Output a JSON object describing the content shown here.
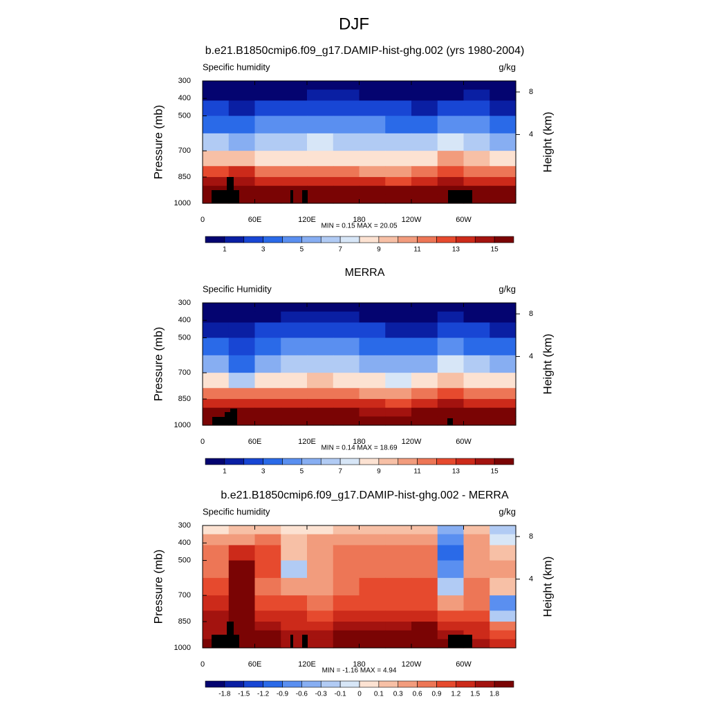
{
  "title": "DJF",
  "chart_data": [
    {
      "type": "contour",
      "title": "b.e21.B1850cmip6.f09_g17.DAMIP-hist-ghg.002 (yrs 1980-2004)",
      "left_string": "Specific humidity",
      "right_string": "g/kg",
      "ylabel": "Pressure (mb)",
      "y2label": "Height (km)",
      "annotation": "MIN =   0.15  MAX =  20.05",
      "x": [
        15,
        45,
        75,
        105,
        135,
        165,
        195,
        225,
        255,
        285,
        315,
        345
      ],
      "y": [
        325,
        375,
        450,
        550,
        650,
        750,
        825,
        875,
        925,
        975
      ],
      "z": [
        [
          0.3,
          0.3,
          0.3,
          0.4,
          0.4,
          0.4,
          0.3,
          0.3,
          0.3,
          0.3,
          0.4,
          0.3
        ],
        [
          0.8,
          0.7,
          0.8,
          0.9,
          1.0,
          1.0,
          0.9,
          0.8,
          0.7,
          0.9,
          1.0,
          0.7
        ],
        [
          2.0,
          1.8,
          2.2,
          2.6,
          2.8,
          2.6,
          2.4,
          2.0,
          1.8,
          2.4,
          2.4,
          1.8
        ],
        [
          3.6,
          3.4,
          4.2,
          4.6,
          4.8,
          4.5,
          4.2,
          3.8,
          3.6,
          4.4,
          4.2,
          3.4
        ],
        [
          6.0,
          5.5,
          6.5,
          6.8,
          7.0,
          6.8,
          6.5,
          6.0,
          6.2,
          7.5,
          6.5,
          5.5
        ],
        [
          9.5,
          9.0,
          8.5,
          8.8,
          8.8,
          8.5,
          8.2,
          8.0,
          8.5,
          10.0,
          9.0,
          8.8
        ],
        [
          12,
          13,
          11,
          11,
          11,
          11,
          10.5,
          10.5,
          11,
          12,
          11.5,
          11.5
        ],
        [
          14,
          14,
          13,
          13.5,
          13.5,
          13,
          13,
          12.5,
          13,
          14,
          13.5,
          13.5
        ],
        [
          16,
          16,
          15.5,
          15.5,
          15.5,
          15.5,
          15,
          15,
          15.5,
          16,
          15.5,
          15.5
        ],
        [
          17.5,
          17,
          17,
          17.5,
          17.5,
          17,
          17,
          16.5,
          17,
          17.5,
          17,
          17
        ]
      ],
      "xlim": [
        0,
        360
      ],
      "ylim": [
        1000,
        300
      ],
      "xticks": [
        0,
        {
          "value": 60,
          "label": "60E"
        },
        {
          "value": 120,
          "label": "120E"
        },
        180,
        {
          "value": 240,
          "label": "120W"
        },
        {
          "value": 300,
          "label": "60W"
        }
      ],
      "yticks": [
        300,
        400,
        500,
        700,
        850,
        1000
      ],
      "y2ticks": [
        4,
        8
      ],
      "levels": [
        1,
        2,
        3,
        4,
        5,
        6,
        7,
        8,
        9,
        10,
        11,
        12,
        13,
        14,
        15
      ],
      "colorbar_labels": [
        1,
        3,
        5,
        7,
        9,
        11,
        13,
        15
      ],
      "colors": [
        "#040470",
        "#0a1fa3",
        "#1846d4",
        "#2a6ae8",
        "#5a8ff0",
        "#87aef2",
        "#b1cbf4",
        "#d7e6f7",
        "#fce2d2",
        "#f7c0a6",
        "#f29c7d",
        "#ed7656",
        "#e64a2e",
        "#cc2a1a",
        "#a3130f",
        "#7a0404"
      ]
    },
    {
      "type": "contour",
      "title": "MERRA",
      "left_string": "Specific Humidity",
      "right_string": "g/kg",
      "ylabel": "Pressure (mb)",
      "y2label": "Height (km)",
      "annotation": "MIN =   0.14  MAX =  18.69",
      "x": [
        15,
        45,
        75,
        105,
        135,
        165,
        195,
        225,
        255,
        285,
        315,
        345
      ],
      "y": [
        325,
        375,
        450,
        550,
        650,
        750,
        825,
        875,
        925,
        975
      ],
      "z": [
        [
          0.3,
          0.3,
          0.4,
          0.4,
          0.5,
          0.4,
          0.3,
          0.3,
          0.3,
          0.4,
          0.4,
          0.3
        ],
        [
          0.7,
          0.6,
          0.9,
          1.0,
          1.1,
          1.0,
          0.9,
          0.8,
          0.7,
          1.0,
          0.9,
          0.7
        ],
        [
          1.6,
          1.2,
          2.2,
          2.4,
          2.6,
          2.4,
          2.2,
          1.9,
          1.7,
          2.4,
          2.2,
          1.6
        ],
        [
          3.0,
          2.2,
          3.8,
          4.2,
          4.4,
          4.1,
          3.8,
          3.4,
          3.2,
          4.2,
          3.8,
          3.0
        ],
        [
          5.0,
          3.6,
          5.8,
          6.2,
          6.5,
          6.2,
          5.9,
          5.5,
          5.8,
          7.0,
          6.0,
          5.0
        ],
        [
          8.5,
          6.5,
          8.5,
          8.8,
          9.0,
          8.5,
          8.0,
          7.8,
          8.5,
          9.5,
          8.5,
          8.0
        ],
        [
          11,
          11,
          11,
          11.5,
          11.5,
          11,
          10.5,
          10.5,
          11,
          12,
          11,
          11
        ],
        [
          13.5,
          13,
          13,
          13.5,
          13.5,
          13,
          13,
          12.5,
          13,
          14,
          13,
          13
        ],
        [
          15.5,
          15,
          15,
          15.5,
          15.5,
          15,
          14.5,
          14.5,
          15,
          15.5,
          15,
          15
        ],
        [
          16.5,
          16,
          16,
          16.5,
          16.5,
          16,
          15.5,
          15.5,
          16,
          16.5,
          16,
          16
        ]
      ],
      "xlim": [
        0,
        360
      ],
      "ylim": [
        1000,
        300
      ],
      "xticks": [
        0,
        {
          "value": 60,
          "label": "60E"
        },
        {
          "value": 120,
          "label": "120E"
        },
        180,
        {
          "value": 240,
          "label": "120W"
        },
        {
          "value": 300,
          "label": "60W"
        }
      ],
      "yticks": [
        300,
        400,
        500,
        700,
        850,
        1000
      ],
      "y2ticks": [
        4,
        8
      ],
      "levels": [
        1,
        2,
        3,
        4,
        5,
        6,
        7,
        8,
        9,
        10,
        11,
        12,
        13,
        14,
        15
      ],
      "colorbar_labels": [
        1,
        3,
        5,
        7,
        9,
        11,
        13,
        15
      ],
      "colors": [
        "#040470",
        "#0a1fa3",
        "#1846d4",
        "#2a6ae8",
        "#5a8ff0",
        "#87aef2",
        "#b1cbf4",
        "#d7e6f7",
        "#fce2d2",
        "#f7c0a6",
        "#f29c7d",
        "#ed7656",
        "#e64a2e",
        "#cc2a1a",
        "#a3130f",
        "#7a0404"
      ]
    },
    {
      "type": "contour",
      "title": "b.e21.B1850cmip6.f09_g17.DAMIP-hist-ghg.002 - MERRA",
      "left_string": "Specific humidity",
      "right_string": "g/kg",
      "ylabel": "Pressure (mb)",
      "y2label": "Height (km)",
      "annotation": "MIN =  -1.16  MAX =   4.94",
      "x": [
        15,
        45,
        75,
        105,
        135,
        165,
        195,
        225,
        255,
        285,
        315,
        345
      ],
      "y": [
        325,
        375,
        450,
        550,
        650,
        750,
        825,
        875,
        925,
        975
      ],
      "z": [
        [
          0.05,
          0.2,
          0.15,
          0.05,
          0.05,
          0.2,
          0.15,
          0.1,
          0.15,
          -0.5,
          0.2,
          -0.2
        ],
        [
          0.4,
          0.5,
          0.7,
          0.1,
          0.3,
          0.5,
          0.4,
          0.3,
          0.4,
          -0.8,
          0.3,
          -0.1
        ],
        [
          0.6,
          1.2,
          0.9,
          0.2,
          0.5,
          0.7,
          0.7,
          0.6,
          0.7,
          -1.0,
          0.4,
          0.1
        ],
        [
          0.8,
          1.8,
          1.0,
          -0.2,
          0.3,
          0.6,
          0.8,
          0.8,
          0.7,
          -0.9,
          0.5,
          0.3
        ],
        [
          1.0,
          2.2,
          0.8,
          0.3,
          0.4,
          0.7,
          0.9,
          0.9,
          0.9,
          -0.3,
          0.8,
          0.2
        ],
        [
          1.2,
          2.5,
          1.0,
          0.9,
          0.6,
          0.9,
          1.1,
          1.0,
          1.0,
          0.5,
          0.6,
          -0.7
        ],
        [
          1.5,
          2.6,
          1.4,
          1.2,
          1.0,
          1.2,
          1.4,
          1.3,
          1.4,
          1.0,
          0.9,
          -0.3
        ],
        [
          1.6,
          2.4,
          1.6,
          1.4,
          1.3,
          1.5,
          1.7,
          1.7,
          1.8,
          1.4,
          1.2,
          0.6
        ],
        [
          1.7,
          2.0,
          1.8,
          1.6,
          1.6,
          1.8,
          2.0,
          2.0,
          2.0,
          1.6,
          1.4,
          1.0
        ],
        [
          1.8,
          1.9,
          1.9,
          1.7,
          1.7,
          1.9,
          2.0,
          2.1,
          2.1,
          1.8,
          1.5,
          1.2
        ]
      ],
      "xlim": [
        0,
        360
      ],
      "ylim": [
        1000,
        300
      ],
      "xticks": [
        0,
        {
          "value": 60,
          "label": "60E"
        },
        {
          "value": 120,
          "label": "120E"
        },
        180,
        {
          "value": 240,
          "label": "120W"
        },
        {
          "value": 300,
          "label": "60W"
        }
      ],
      "yticks": [
        300,
        400,
        500,
        700,
        850,
        1000
      ],
      "y2ticks": [
        4,
        8
      ],
      "levels": [
        -1.8,
        -1.5,
        -1.2,
        -0.9,
        -0.6,
        -0.3,
        -0.1,
        0,
        0.1,
        0.3,
        0.6,
        0.9,
        1.2,
        1.5,
        1.8
      ],
      "colorbar_labels": [
        -1.8,
        -1.5,
        -1.2,
        -0.9,
        -0.6,
        -0.3,
        -0.1,
        0,
        0.1,
        0.3,
        0.6,
        0.9,
        1.2,
        1.5,
        1.8
      ],
      "colors": [
        "#040470",
        "#0a1fa3",
        "#1846d4",
        "#2a6ae8",
        "#5a8ff0",
        "#87aef2",
        "#b1cbf4",
        "#d7e6f7",
        "#fce2d2",
        "#f7c0a6",
        "#f29c7d",
        "#ed7656",
        "#e64a2e",
        "#cc2a1a",
        "#a3130f",
        "#7a0404"
      ]
    }
  ]
}
